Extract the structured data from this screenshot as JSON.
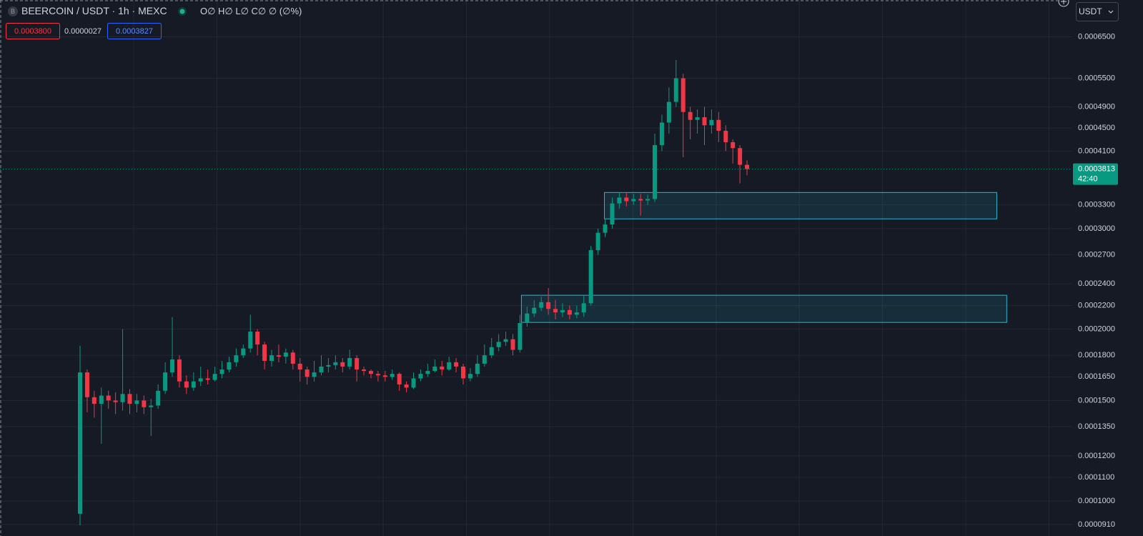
{
  "chart_data": {
    "type": "candlestick",
    "title": "BEERCOIN / USDT · 1h · MEXC",
    "symbol_icon": "B",
    "ohlc_legend": "O∅ H∅ L∅ C∅ ∅ (∅%)",
    "sell_price": "0.0003800",
    "spread": "0.0000027",
    "buy_price": "0.0003827",
    "currency": "USDT",
    "countdown": "42:40",
    "last_price": {
      "value": 0.0003813,
      "label": "0.0003813"
    },
    "yscale": "log",
    "grid": true,
    "up_color": "#089981",
    "down_color": "#f23645",
    "zone_color": "#1fbcd2",
    "ylim": [
      9.07e-05,
      0.000754
    ],
    "yticks": [
      {
        "value": 0.00065,
        "label": "0.0006500"
      },
      {
        "value": 0.00055,
        "label": "0.0005500"
      },
      {
        "value": 0.00049,
        "label": "0.0004900"
      },
      {
        "value": 0.00045,
        "label": "0.0004500"
      },
      {
        "value": 0.00041,
        "label": "0.0004100"
      },
      {
        "value": 0.00033,
        "label": "0.0003300"
      },
      {
        "value": 0.0003,
        "label": "0.0003000"
      },
      {
        "value": 0.00027,
        "label": "0.0002700"
      },
      {
        "value": 0.00024,
        "label": "0.0002400"
      },
      {
        "value": 0.00022,
        "label": "0.0002200"
      },
      {
        "value": 0.0002,
        "label": "0.0002000"
      },
      {
        "value": 0.00018,
        "label": "0.0001800"
      },
      {
        "value": 0.000165,
        "label": "0.0001650"
      },
      {
        "value": 0.00015,
        "label": "0.0001500"
      },
      {
        "value": 0.000135,
        "label": "0.0001350"
      },
      {
        "value": 0.00012,
        "label": "0.0001200"
      },
      {
        "value": 0.00011,
        "label": "0.0001100"
      },
      {
        "value": 0.0001,
        "label": "0.0001000"
      },
      {
        "value": 9.1e-05,
        "label": "0.0000910"
      }
    ],
    "zones": [
      {
        "from": 73.9,
        "to": 129.2,
        "high": 0.000347,
        "low": 0.000312
      },
      {
        "from": 62.2,
        "to": 130.6,
        "high": 0.0002293,
        "low": 0.0002055
      }
    ],
    "open": [
      9.5e-05,
      0.000168,
      0.000152,
      0.000148,
      0.000153,
      0.00015,
      0.000149,
      0.000154,
      0.000148,
      0.00015,
      0.000146,
      0.000147,
      0.000156,
      0.000168,
      0.000177,
      0.000162,
      0.000158,
      0.000162,
      0.000164,
      0.000163,
      0.000167,
      0.00017,
      0.000175,
      0.00018,
      0.000185,
      0.000198,
      0.000188,
      0.000176,
      0.00018,
      0.000179,
      0.000182,
      0.000174,
      0.00017,
      0.000165,
      0.000168,
      0.000172,
      0.000173,
      0.000175,
      0.000172,
      0.000178,
      0.00017,
      0.000169,
      0.000167,
      0.000166,
      0.000165,
      0.000167,
      0.00016,
      0.000158,
      0.000164,
      0.000167,
      0.000169,
      0.000172,
      0.00017,
      0.000175,
      0.000172,
      0.000164,
      0.000167,
      0.000174,
      0.00018,
      0.000186,
      0.00019,
      0.000192,
      0.000184,
      0.000205,
      0.000213,
      0.000218,
      0.000223,
      0.000217,
      0.000214,
      0.000216,
      0.000212,
      0.000214,
      0.000222,
      0.000275,
      0.000295,
      0.000305,
      0.000332,
      0.00034,
      0.000335,
      0.000338,
      0.000336,
      0.000338,
      0.00042,
      0.00046,
      0.0005,
      0.00055,
      0.00048,
      0.000465,
      0.00047,
      0.000455,
      0.000465,
      0.000445,
      0.000425,
      0.000415,
      0.000388
    ],
    "high": [
      0.000187,
      0.00017,
      0.000156,
      0.000158,
      0.000156,
      0.000155,
      0.0002,
      0.000157,
      0.000154,
      0.000153,
      0.000151,
      0.00016,
      0.000175,
      0.00021,
      0.00018,
      0.000166,
      0.000168,
      0.000172,
      0.00017,
      0.000172,
      0.000176,
      0.000179,
      0.000185,
      0.000188,
      0.000212,
      0.0002,
      0.00019,
      0.000184,
      0.000188,
      0.000185,
      0.000184,
      0.000178,
      0.000172,
      0.000176,
      0.00018,
      0.000178,
      0.00018,
      0.000178,
      0.000184,
      0.00018,
      0.000172,
      0.00017,
      0.000169,
      0.000169,
      0.00017,
      0.000168,
      0.000162,
      0.000168,
      0.00017,
      0.000174,
      0.000177,
      0.000176,
      0.000179,
      0.000178,
      0.000174,
      0.000171,
      0.00018,
      0.000188,
      0.000193,
      0.000196,
      0.000198,
      0.000196,
      0.000212,
      0.000219,
      0.000225,
      0.000228,
      0.000236,
      0.000225,
      0.000222,
      0.00022,
      0.00022,
      0.000229,
      0.00028,
      0.0003,
      0.000312,
      0.00034,
      0.000347,
      0.000346,
      0.000345,
      0.000345,
      0.000344,
      0.00044,
      0.000475,
      0.00053,
      0.000592,
      0.00056,
      0.00049,
      0.000485,
      0.00049,
      0.000485,
      0.00048,
      0.000455,
      0.00043,
      0.00042,
      0.000395
    ],
    "low": [
      9e-05,
      0.000143,
      0.00014,
      0.000126,
      0.000145,
      0.000142,
      0.000144,
      0.000142,
      0.000143,
      0.000142,
      0.00013,
      0.000145,
      0.000154,
      0.000165,
      0.000158,
      0.000154,
      0.000156,
      0.000159,
      0.00016,
      0.000162,
      0.000164,
      0.000168,
      0.000172,
      0.000178,
      0.000182,
      0.00018,
      0.00017,
      0.000172,
      0.000175,
      0.000174,
      0.00017,
      0.000162,
      0.00016,
      0.000162,
      0.000166,
      0.000168,
      0.00017,
      0.000168,
      0.00017,
      0.000162,
      0.000166,
      0.000164,
      0.000162,
      0.000162,
      0.000163,
      0.000156,
      0.000155,
      0.000157,
      0.000162,
      0.000165,
      0.000168,
      0.000166,
      0.000169,
      0.000168,
      0.00016,
      0.000162,
      0.000165,
      0.000172,
      0.000178,
      0.000183,
      0.000187,
      0.00018,
      0.000182,
      0.000202,
      0.00021,
      0.000215,
      0.000212,
      0.000208,
      0.00021,
      0.000208,
      0.000209,
      0.00021,
      0.00022,
      0.00027,
      0.00029,
      0.0003,
      0.000325,
      0.000328,
      0.00033,
      0.000316,
      0.00033,
      0.000334,
      0.00041,
      0.00044,
      0.00049,
      0.0004,
      0.00043,
      0.00044,
      0.00042,
      0.00044,
      0.000425,
      0.00041,
      0.00039,
      0.00036,
      0.000372
    ],
    "close": [
      0.000168,
      0.000152,
      0.000148,
      0.000153,
      0.00015,
      0.000149,
      0.000154,
      0.000148,
      0.00015,
      0.000146,
      0.000147,
      0.000156,
      0.000168,
      0.000177,
      0.000162,
      0.000158,
      0.000162,
      0.000164,
      0.000163,
      0.000167,
      0.00017,
      0.000175,
      0.00018,
      0.000185,
      0.000198,
      0.000188,
      0.000176,
      0.00018,
      0.000179,
      0.000182,
      0.000174,
      0.00017,
      0.000165,
      0.000168,
      0.000172,
      0.000173,
      0.000175,
      0.000172,
      0.000178,
      0.00017,
      0.000169,
      0.000167,
      0.000166,
      0.000165,
      0.000167,
      0.00016,
      0.000158,
      0.000164,
      0.000167,
      0.000169,
      0.000172,
      0.00017,
      0.000175,
      0.000172,
      0.000164,
      0.000167,
      0.000174,
      0.00018,
      0.000186,
      0.00019,
      0.000192,
      0.000184,
      0.000205,
      0.000213,
      0.000218,
      0.000223,
      0.000217,
      0.000214,
      0.000216,
      0.000212,
      0.000214,
      0.000222,
      0.000275,
      0.000295,
      0.000305,
      0.000332,
      0.00034,
      0.000335,
      0.000338,
      0.000336,
      0.000338,
      0.00042,
      0.00046,
      0.0005,
      0.00055,
      0.00048,
      0.000465,
      0.00047,
      0.000455,
      0.000465,
      0.000445,
      0.000425,
      0.000415,
      0.000388,
      0.0003813
    ]
  }
}
